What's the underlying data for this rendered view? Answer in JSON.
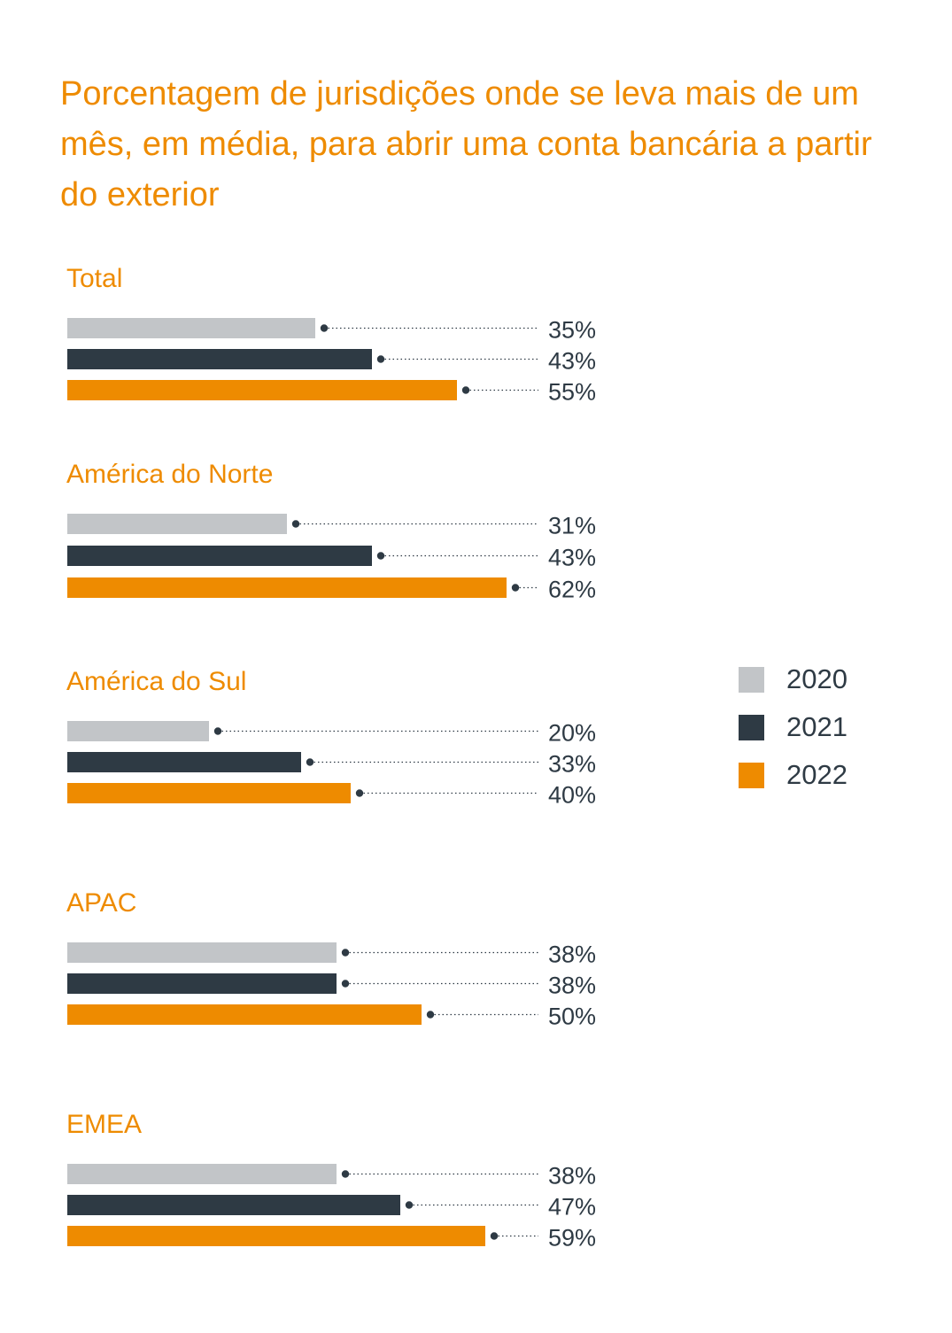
{
  "chart_data": {
    "type": "bar",
    "title": "Porcentagem de jurisdições onde se leva mais de um mês, em média, para abrir uma conta bancária a partir do exterior",
    "legend_position": "right",
    "series_names": [
      "2020",
      "2021",
      "2022"
    ],
    "colors": [
      "#c2c5c8",
      "#2e3a44",
      "#ee8b00"
    ],
    "value_suffix": "%",
    "groups": [
      {
        "label": "Total",
        "values": [
          35,
          43,
          55
        ]
      },
      {
        "label": "América do Norte",
        "values": [
          31,
          43,
          62
        ]
      },
      {
        "label": "América do Sul",
        "values": [
          20,
          33,
          40
        ]
      },
      {
        "label": "APAC",
        "values": [
          38,
          38,
          50
        ]
      },
      {
        "label": "EMEA",
        "values": [
          38,
          47,
          59
        ]
      }
    ]
  }
}
